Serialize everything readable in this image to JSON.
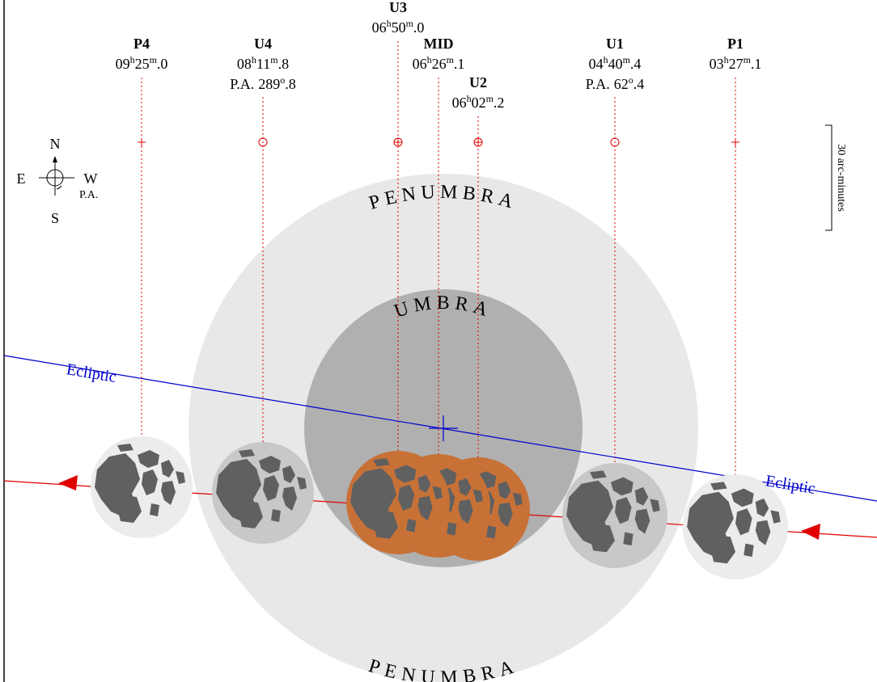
{
  "compass": {
    "north": "N",
    "south": "S",
    "east": "E",
    "west": "W",
    "pa": "P.A."
  },
  "scale": "30 arc-minutes",
  "regions": {
    "penumbra_top": "PENUMBRA",
    "umbra": "UMBRA",
    "penumbra_bottom": "PENUMBRA"
  },
  "ecliptic_labels": [
    "Ecliptic",
    "Ecliptic"
  ],
  "contacts": [
    {
      "name": "P4",
      "time": {
        "hours": "09",
        "h": "h",
        "minutes": "25",
        "m": "m",
        "tenths": ".0"
      }
    },
    {
      "name": "U4",
      "time": {
        "hours": "08",
        "h": "h",
        "minutes": "11",
        "m": "m",
        "tenths": ".8"
      },
      "pa": {
        "label": "P.A.",
        "degrees": "289",
        "deg": "o",
        "tenths": ".8"
      }
    },
    {
      "name": "U3",
      "time": {
        "hours": "06",
        "h": "h",
        "minutes": "50",
        "m": "m",
        "tenths": ".0"
      }
    },
    {
      "name": "MID",
      "time": {
        "hours": "06",
        "h": "h",
        "minutes": "26",
        "m": "m",
        "tenths": ".1"
      }
    },
    {
      "name": "U2",
      "time": {
        "hours": "06",
        "h": "h",
        "minutes": "02",
        "m": "m",
        "tenths": ".2"
      }
    },
    {
      "name": "U1",
      "time": {
        "hours": "04",
        "h": "h",
        "minutes": "40",
        "m": "m",
        "tenths": ".4"
      },
      "pa": {
        "label": "P.A.",
        "degrees": "62",
        "deg": "o",
        "tenths": ".4"
      }
    },
    {
      "name": "P1",
      "time": {
        "hours": "03",
        "h": "h",
        "minutes": "27",
        "m": "m",
        "tenths": ".1"
      }
    }
  ]
}
